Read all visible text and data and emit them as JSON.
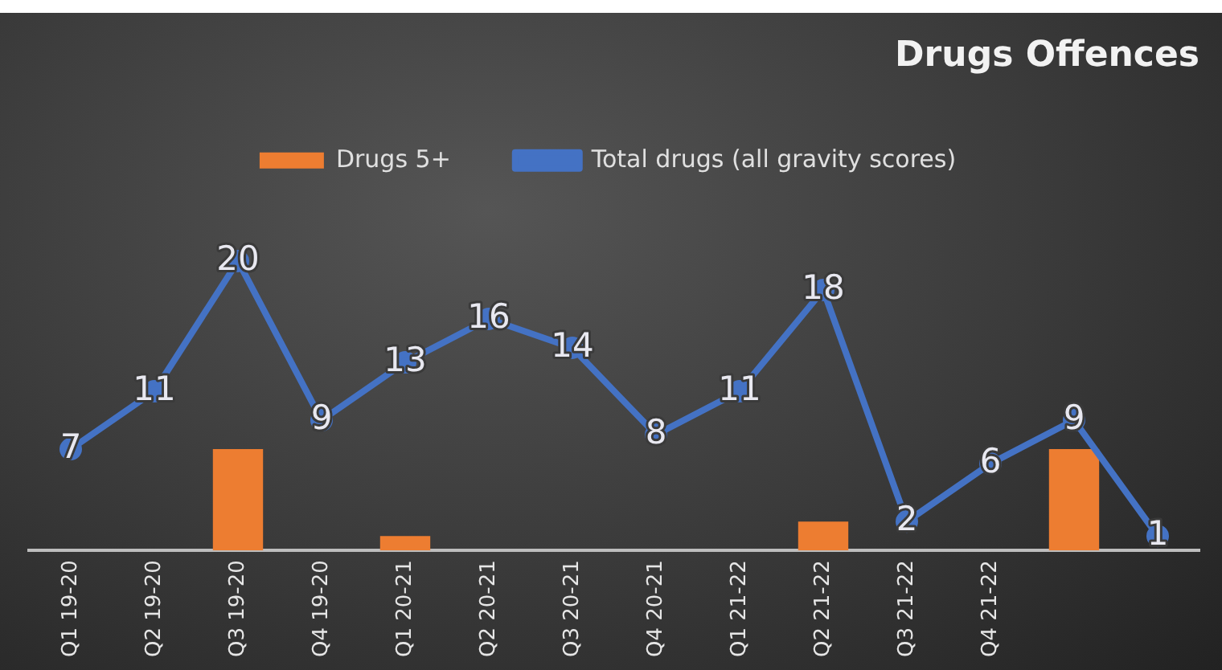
{
  "chart_data": {
    "type": "bar",
    "title": "Drugs Offences",
    "categories": [
      "Q1 19-20",
      "Q2 19-20",
      "Q3 19-20",
      "Q4 19-20",
      "Q1 20-21",
      "Q2 20-21",
      "Q3 20-21",
      "Q4 20-21",
      "Q1 21-22",
      "Q2 21-22",
      "Q3 21-22",
      "Q4 21-22",
      null,
      null
    ],
    "series": [
      {
        "name": "Drugs 5+",
        "color": "#ed7d31",
        "values": [
          null,
          null,
          7,
          null,
          1,
          null,
          null,
          null,
          null,
          2,
          null,
          null,
          7,
          null
        ]
      },
      {
        "name": "Total drugs (all gravity scores)",
        "type": "line",
        "color": "#4472c4",
        "values": [
          7,
          11,
          20,
          9,
          13,
          16,
          14,
          8,
          11,
          18,
          2,
          6,
          9,
          1
        ],
        "value_labels": [
          "7",
          "11",
          "20",
          "9",
          "13",
          "16",
          "14",
          "8",
          "11",
          "18",
          "2",
          "6",
          "9",
          "1"
        ]
      }
    ],
    "tick_labels": "x",
    "grid": false,
    "legend": "top",
    "marker": "circle",
    "line_style": "solid"
  }
}
